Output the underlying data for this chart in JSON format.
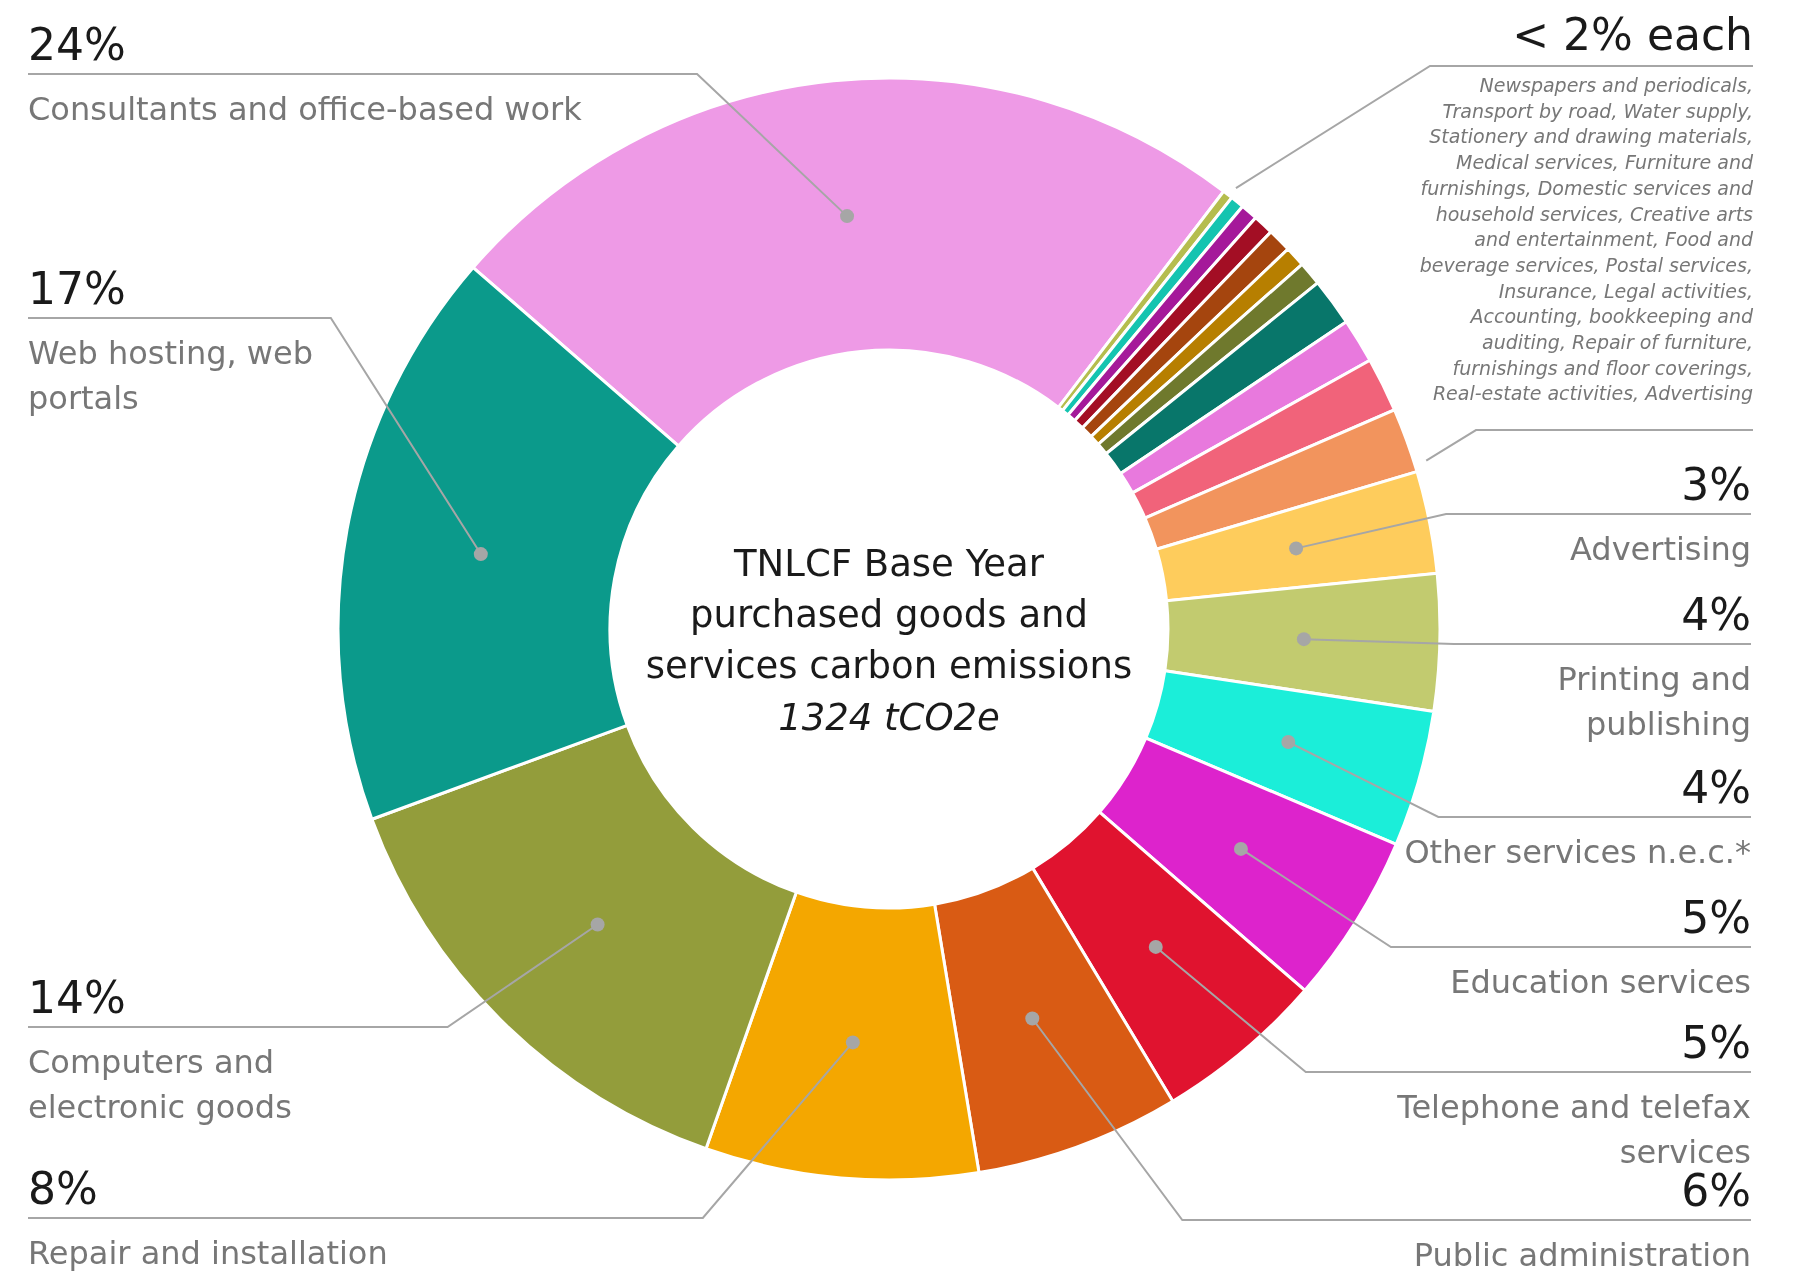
{
  "chart_data": {
    "type": "donut",
    "title": "TNLCF Base Year purchased goods and services carbon emissions",
    "subtitle": "1324 tCO2e",
    "categories": [
      "Consultants and office-based work",
      null,
      null,
      null,
      null,
      null,
      null,
      null,
      null,
      null,
      null,
      null,
      "Advertising",
      "Printing and publishing",
      "Other services n.e.c.*",
      "Education services",
      "Telephone and telefax services",
      "Public administration",
      "Repair and installation",
      "Computers and electronic goods",
      "Web hosting, web portals"
    ],
    "values": [
      24,
      0.3,
      0.4,
      0.5,
      0.6,
      0.7,
      0.6,
      0.7,
      1.4,
      1.3,
      1.6,
      1.9,
      3,
      4,
      4,
      5,
      5,
      6,
      8,
      14,
      17
    ],
    "colors": [
      "#ee9ae6",
      "#b5bd4e",
      "#14c4b0",
      "#a5199a",
      "#a30e24",
      "#a5450e",
      "#b77f00",
      "#6f792d",
      "#08766a",
      "#e879dd",
      "#f1637a",
      "#f2945d",
      "#fecc5c",
      "#c2cb6f",
      "#1beed9",
      "#dd23cc",
      "#e0132f",
      "#d95b14",
      "#f4a700",
      "#939d3b",
      "#0b9a8b"
    ],
    "value_labels": [
      "24%",
      null,
      null,
      null,
      null,
      null,
      null,
      null,
      null,
      null,
      null,
      null,
      "3%",
      "4%",
      "4%",
      "5%",
      "5%",
      "6%",
      "8%",
      "14%",
      "17%"
    ],
    "annotations": [
      "< 2% each",
      "Newspapers and periodicals, Transport by road, Water supply, Stationery and drawing materials, Medical services, Furniture and furnishings, Domestic services and household services, Creative arts and entertainment, Food and beverage services, Postal services, Insurance, Legal activities, Accounting, bookkeeping and auditing, Repair of furniture, furnishings and floor coverings, Real-estate activities, Advertising"
    ]
  }
}
